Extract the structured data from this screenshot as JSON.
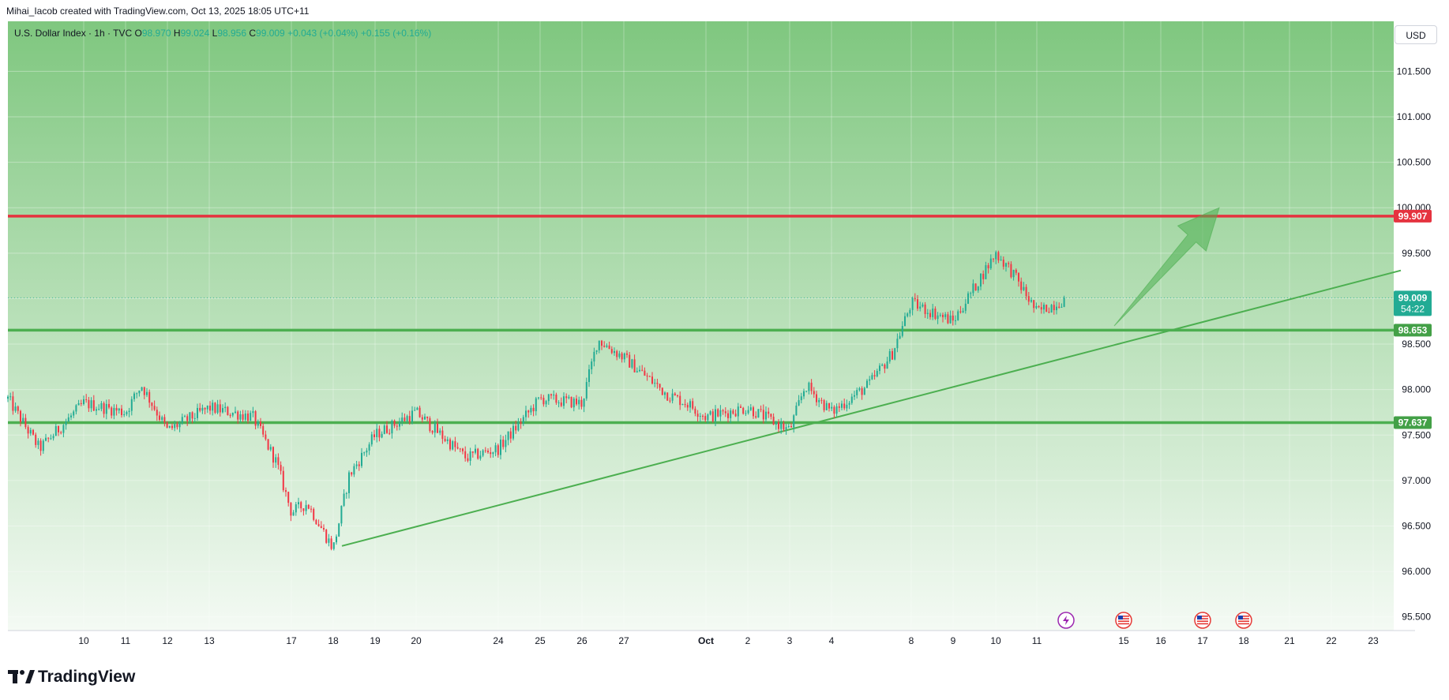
{
  "header": {
    "credit": "Mihai_Iacob created with TradingView.com, Oct 13, 2025 18:05 UTC+11"
  },
  "symbol": {
    "name": "U.S. Dollar Index · 1h · TVC",
    "o_label": "O",
    "o_value": "98.970",
    "h_label": "H",
    "h_value": "99.024",
    "l_label": "L",
    "l_value": "98.956",
    "c_label": "C",
    "c_value": "99.009",
    "change": "+0.043 (+0.04%)",
    "change2": "+0.155 (+0.16%)"
  },
  "currency_button": "USD",
  "brand": "TradingView",
  "colors": {
    "up": "#22ab94",
    "down": "#f23645",
    "resistance": "#e5333f",
    "support": "#4caf50",
    "trend": "#4caf50",
    "current_price": "#22ab94",
    "bg_top": "#7fc77f",
    "bg_bottom": "#f4faf4"
  },
  "chart_data": {
    "type": "candlestick",
    "title": "U.S. Dollar Index · 1h · TVC",
    "ylim": [
      95.35,
      102.05
    ],
    "y_ticks": [
      "95.500",
      "96.000",
      "96.500",
      "97.000",
      "97.500",
      "98.000",
      "98.500",
      "99.000",
      "99.500",
      "100.000",
      "100.500",
      "101.000",
      "101.500"
    ],
    "x_ticks": [
      "10",
      "11",
      "12",
      "13",
      "17",
      "18",
      "19",
      "20",
      "24",
      "25",
      "26",
      "27",
      "Oct",
      "2",
      "3",
      "4",
      "8",
      "9",
      "10",
      "11",
      "15",
      "16",
      "17",
      "18",
      "21",
      "22",
      "23"
    ],
    "grid": true,
    "price_path": [
      [
        "Sep 8",
        97.9
      ],
      [
        "Sep 9",
        97.35
      ],
      [
        "Sep 10",
        97.85
      ],
      [
        "Sep 11",
        97.75
      ],
      [
        "Sep 11 late",
        98.05
      ],
      [
        "Sep 12",
        97.55
      ],
      [
        "Sep 13",
        97.8
      ],
      [
        "Sep 15",
        97.7
      ],
      [
        "Sep 16",
        97.2
      ],
      [
        "Sep 17",
        96.65
      ],
      [
        "Sep 17 late",
        96.75
      ],
      [
        "Sep 18",
        96.25
      ],
      [
        "Sep 18 late",
        97.05
      ],
      [
        "Sep 19",
        97.5
      ],
      [
        "Sep 20",
        97.75
      ],
      [
        "Sep 23",
        97.25
      ],
      [
        "Sep 24",
        97.35
      ],
      [
        "Sep 25",
        97.9
      ],
      [
        "Sep 26",
        97.85
      ],
      [
        "Sep 26 late",
        98.55
      ],
      [
        "Sep 27",
        98.35
      ],
      [
        "Sep 29",
        97.95
      ],
      [
        "Sep 30",
        97.85
      ],
      [
        "Oct 1",
        97.7
      ],
      [
        "Oct 2",
        97.8
      ],
      [
        "Oct 3",
        97.55
      ],
      [
        "Oct 3 late",
        98.05
      ],
      [
        "Oct 4",
        97.75
      ],
      [
        "Oct 6",
        98.05
      ],
      [
        "Oct 7",
        98.4
      ],
      [
        "Oct 8",
        98.95
      ],
      [
        "Oct 9",
        98.75
      ],
      [
        "Oct 10",
        99.5
      ],
      [
        "Oct 10 late",
        99.3
      ],
      [
        "Oct 11",
        98.85
      ],
      [
        "Oct 12",
        99.0
      ]
    ],
    "horizontal_levels": [
      {
        "name": "resistance",
        "value": 99.907,
        "label": "99.907"
      },
      {
        "name": "support-upper",
        "value": 98.653,
        "label": "98.653"
      },
      {
        "name": "support-lower",
        "value": 97.637,
        "label": "97.637"
      }
    ],
    "trend_line": {
      "start": [
        "Sep 18",
        96.28
      ],
      "end": [
        "Oct 23",
        99.31
      ]
    },
    "projection_arrow": {
      "start": [
        "Oct 14",
        98.7
      ],
      "end": [
        "Oct 17",
        100.0
      ]
    },
    "current_price": {
      "value": 99.009,
      "label": "99.009",
      "countdown": "54:22"
    },
    "events": [
      {
        "date": "Oct 12",
        "kind": "event-bolt"
      },
      {
        "date": "Oct 15",
        "kind": "us-flag"
      },
      {
        "date": "Oct 17",
        "kind": "us-flag"
      },
      {
        "date": "Oct 18",
        "kind": "us-flag"
      }
    ]
  }
}
